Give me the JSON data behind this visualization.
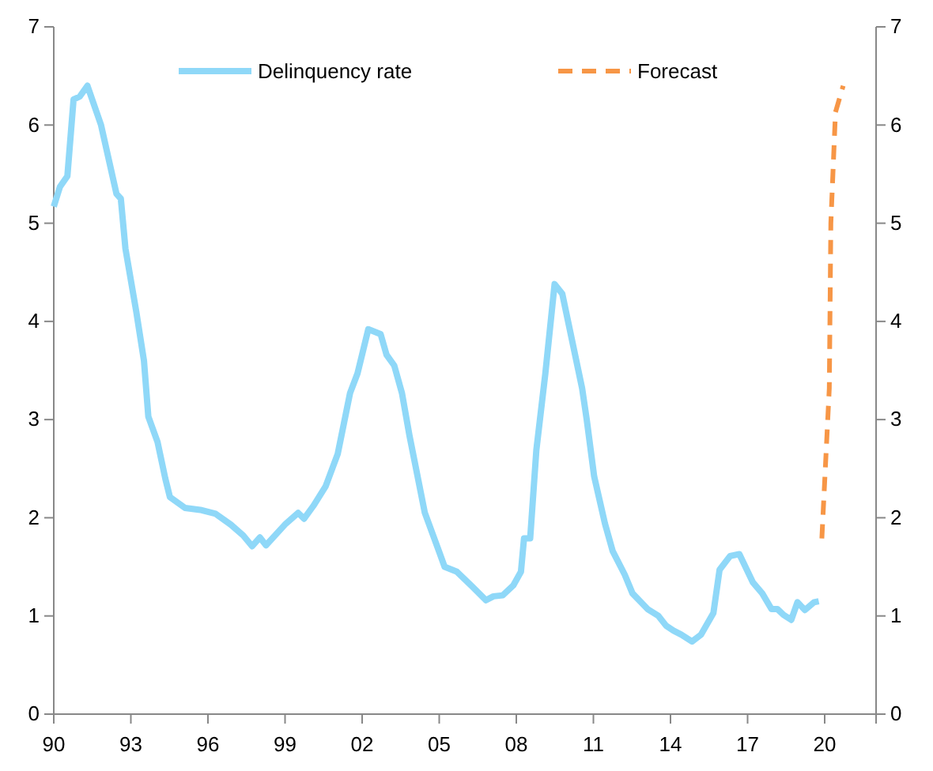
{
  "chart_data": {
    "type": "line",
    "xlim": [
      1990,
      2022
    ],
    "xticks": [
      {
        "value": 1990,
        "label": "90"
      },
      {
        "value": 1993,
        "label": "93"
      },
      {
        "value": 1996,
        "label": "96"
      },
      {
        "value": 1999,
        "label": "99"
      },
      {
        "value": 2002,
        "label": "02"
      },
      {
        "value": 2005,
        "label": "05"
      },
      {
        "value": 2008,
        "label": "08"
      },
      {
        "value": 2011,
        "label": "11"
      },
      {
        "value": 2014,
        "label": "14"
      },
      {
        "value": 2017,
        "label": "17"
      },
      {
        "value": 2020,
        "label": "20"
      },
      {
        "value": 2022,
        "label": null
      }
    ],
    "ylim": [
      0,
      7
    ],
    "yticks": [
      0,
      1,
      2,
      3,
      4,
      5,
      6,
      7
    ],
    "y2lim": [
      0,
      7
    ],
    "y2ticks": [
      0,
      1,
      2,
      3,
      4,
      5,
      6,
      7
    ],
    "legend": "top",
    "grid": false,
    "series": [
      {
        "name": "Delinquency rate",
        "color": "#8fd8f8",
        "line_style": "solid",
        "x": [
          1990,
          1990.24,
          1990.53,
          1990.77,
          1991.01,
          1991.31,
          1991.84,
          1992.44,
          1992.61,
          1992.79,
          1993.21,
          1993.51,
          1993.68,
          1994.04,
          1994.34,
          1994.52,
          1995.11,
          1995.7,
          1996.3,
          1996.89,
          1997.37,
          1997.72,
          1998.02,
          1998.26,
          1999.03,
          1999.51,
          1999.74,
          2000.1,
          2000.58,
          2001.05,
          2001.53,
          2001.82,
          2002.24,
          2002.72,
          2002.95,
          2003.25,
          2003.55,
          2003.84,
          2004.44,
          2005.03,
          2005.21,
          2005.69,
          2006.28,
          2006.82,
          2007.11,
          2007.47,
          2007.88,
          2008.18,
          2008.3,
          2008.54,
          2008.78,
          2009.13,
          2009.49,
          2009.79,
          2010.56,
          2010.74,
          2011.03,
          2011.45,
          2011.75,
          2012.22,
          2012.52,
          2013.11,
          2013.53,
          2013.83,
          2014.12,
          2014.42,
          2014.84,
          2015.19,
          2015.67,
          2015.91,
          2016.32,
          2016.68,
          2017.21,
          2017.57,
          2017.93,
          2018.16,
          2018.4,
          2018.7,
          2018.94,
          2019.23,
          2019.59,
          2019.77
        ],
        "values": [
          5.17,
          5.37,
          5.48,
          6.26,
          6.29,
          6.4,
          6.0,
          5.3,
          5.25,
          4.74,
          4.1,
          3.6,
          3.03,
          2.77,
          2.4,
          2.21,
          2.1,
          2.08,
          2.04,
          1.93,
          1.82,
          1.71,
          1.8,
          1.72,
          1.94,
          2.05,
          1.99,
          2.12,
          2.32,
          2.65,
          3.27,
          3.47,
          3.92,
          3.87,
          3.66,
          3.55,
          3.27,
          2.84,
          2.05,
          1.63,
          1.5,
          1.45,
          1.3,
          1.16,
          1.2,
          1.21,
          1.31,
          1.45,
          1.79,
          1.79,
          2.69,
          3.47,
          4.38,
          4.28,
          3.32,
          3.0,
          2.42,
          1.94,
          1.66,
          1.42,
          1.23,
          1.07,
          1.0,
          0.9,
          0.85,
          0.81,
          0.74,
          0.81,
          1.03,
          1.47,
          1.61,
          1.63,
          1.34,
          1.23,
          1.07,
          1.07,
          1.01,
          0.96,
          1.14,
          1.06,
          1.14,
          1.15
        ]
      },
      {
        "name": "Forecast",
        "color": "#f79646",
        "line_style": "dashed",
        "x": [
          2019.89,
          2020.18,
          2020.24,
          2020.42,
          2020.72
        ],
        "values": [
          1.79,
          3.32,
          5.0,
          6.13,
          6.4
        ]
      }
    ]
  }
}
